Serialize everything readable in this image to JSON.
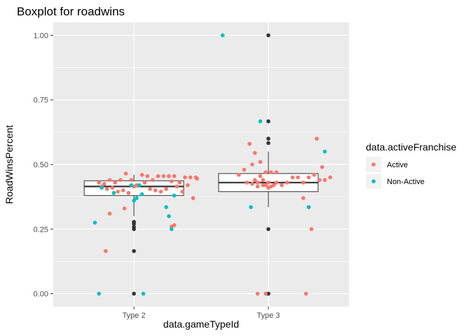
{
  "chart_data": {
    "type": "boxplot",
    "title": "Boxplot for roadwins",
    "xlabel": "data.gameTypeId",
    "ylabel": "RoadWinsPercent",
    "categories": [
      "Type 2",
      "Type 3"
    ],
    "ylim": [
      -0.05,
      1.05
    ],
    "y_ticks": [
      0.0,
      0.25,
      0.5,
      0.75,
      1.0
    ],
    "y_tick_labels": [
      "0.00",
      "0.25",
      "0.50",
      "0.75",
      "1.00"
    ],
    "grid": true,
    "legend": {
      "title": "data.activeFranchise",
      "placement": "right",
      "entries": [
        {
          "label": "Active",
          "color": "#F8766D"
        },
        {
          "label": "Non-Active",
          "color": "#00BFC4"
        }
      ]
    },
    "boxes": [
      {
        "category": "Type 2",
        "q1": 0.38,
        "median": 0.415,
        "q3": 0.437,
        "whisker_low": 0.3,
        "whisker_high": 0.46,
        "outliers": [
          0.0,
          0.165,
          0.25,
          0.258,
          0.27,
          0.278
        ]
      },
      {
        "category": "Type 3",
        "q1": 0.395,
        "median": 0.43,
        "q3": 0.465,
        "whisker_low": 0.335,
        "whisker_high": 0.55,
        "outliers": [
          0.0,
          0.0,
          0.25,
          0.583,
          0.6,
          0.667,
          1.0
        ]
      }
    ],
    "series": [
      {
        "name": "Active",
        "color": "#F8766D",
        "points": [
          [
            1.74,
            0.43
          ],
          [
            1.78,
            0.425
          ],
          [
            1.82,
            0.44
          ],
          [
            1.86,
            0.43
          ],
          [
            1.9,
            0.44
          ],
          [
            1.94,
            0.465
          ],
          [
            1.98,
            0.44
          ],
          [
            2.02,
            0.42
          ],
          [
            1.76,
            0.415
          ],
          [
            1.8,
            0.405
          ],
          [
            1.84,
            0.41
          ],
          [
            1.88,
            0.395
          ],
          [
            1.92,
            0.4
          ],
          [
            1.96,
            0.39
          ],
          [
            2.0,
            0.415
          ],
          [
            2.06,
            0.46
          ],
          [
            2.1,
            0.455
          ],
          [
            2.14,
            0.44
          ],
          [
            2.18,
            0.455
          ],
          [
            2.22,
            0.455
          ],
          [
            2.26,
            0.455
          ],
          [
            2.3,
            0.455
          ],
          [
            2.34,
            0.43
          ],
          [
            2.38,
            0.45
          ],
          [
            2.42,
            0.45
          ],
          [
            2.46,
            0.45
          ],
          [
            2.08,
            0.43
          ],
          [
            2.12,
            0.405
          ],
          [
            2.16,
            0.4
          ],
          [
            2.2,
            0.395
          ],
          [
            2.24,
            0.405
          ],
          [
            2.28,
            0.435
          ],
          [
            2.32,
            0.415
          ],
          [
            2.36,
            0.395
          ],
          [
            2.4,
            0.42
          ],
          [
            2.44,
            0.37
          ],
          [
            1.82,
            0.31
          ],
          [
            1.93,
            0.33
          ],
          [
            1.79,
            0.165
          ],
          [
            2.28,
            0.26
          ],
          [
            2.3,
            0.265
          ],
          [
            2.47,
            0.445
          ],
          [
            2.78,
            0.46
          ],
          [
            2.86,
            0.58
          ],
          [
            2.88,
            0.5
          ],
          [
            2.9,
            0.44
          ],
          [
            2.92,
            0.43
          ],
          [
            2.94,
            0.455
          ],
          [
            2.96,
            0.44
          ],
          [
            2.98,
            0.42
          ],
          [
            3.0,
            0.43
          ],
          [
            3.02,
            0.415
          ],
          [
            3.06,
            0.43
          ],
          [
            3.1,
            0.42
          ],
          [
            3.14,
            0.43
          ],
          [
            3.18,
            0.45
          ],
          [
            3.22,
            0.45
          ],
          [
            3.26,
            0.43
          ],
          [
            3.3,
            0.45
          ],
          [
            3.34,
            0.46
          ],
          [
            3.38,
            0.44
          ],
          [
            3.42,
            0.44
          ],
          [
            3.46,
            0.45
          ],
          [
            2.84,
            0.43
          ],
          [
            2.88,
            0.425
          ],
          [
            2.92,
            0.415
          ],
          [
            2.96,
            0.42
          ],
          [
            3.0,
            0.41
          ],
          [
            3.04,
            0.42
          ],
          [
            2.9,
            0.545
          ],
          [
            2.94,
            0.51
          ],
          [
            2.98,
            0.47
          ],
          [
            3.02,
            0.47
          ],
          [
            3.06,
            0.47
          ],
          [
            2.82,
            0.48
          ],
          [
            3.36,
            0.6
          ],
          [
            3.4,
            0.49
          ],
          [
            3.26,
            0.37
          ],
          [
            3.32,
            0.25
          ],
          [
            3.3,
            0.335
          ],
          [
            2.92,
            0.0
          ],
          [
            2.98,
            0.0
          ],
          [
            3.28,
            0.0
          ]
        ]
      },
      {
        "name": "Non-Active",
        "color": "#00BFC4",
        "points": [
          [
            1.71,
            0.275
          ],
          [
            1.74,
            0.0
          ],
          [
            1.76,
            0.41
          ],
          [
            1.85,
            0.39
          ],
          [
            1.98,
            0.42
          ],
          [
            2.0,
            0.36
          ],
          [
            2.02,
            0.37
          ],
          [
            2.04,
            0.42
          ],
          [
            2.06,
            0.385
          ],
          [
            2.07,
            0.0
          ],
          [
            2.24,
            0.335
          ],
          [
            2.26,
            0.3
          ],
          [
            2.28,
            0.25
          ],
          [
            2.3,
            0.38
          ],
          [
            2.66,
            1.0
          ],
          [
            2.87,
            0.335
          ],
          [
            2.94,
            0.667
          ],
          [
            3.3,
            0.335
          ],
          [
            3.42,
            0.55
          ]
        ]
      }
    ]
  }
}
